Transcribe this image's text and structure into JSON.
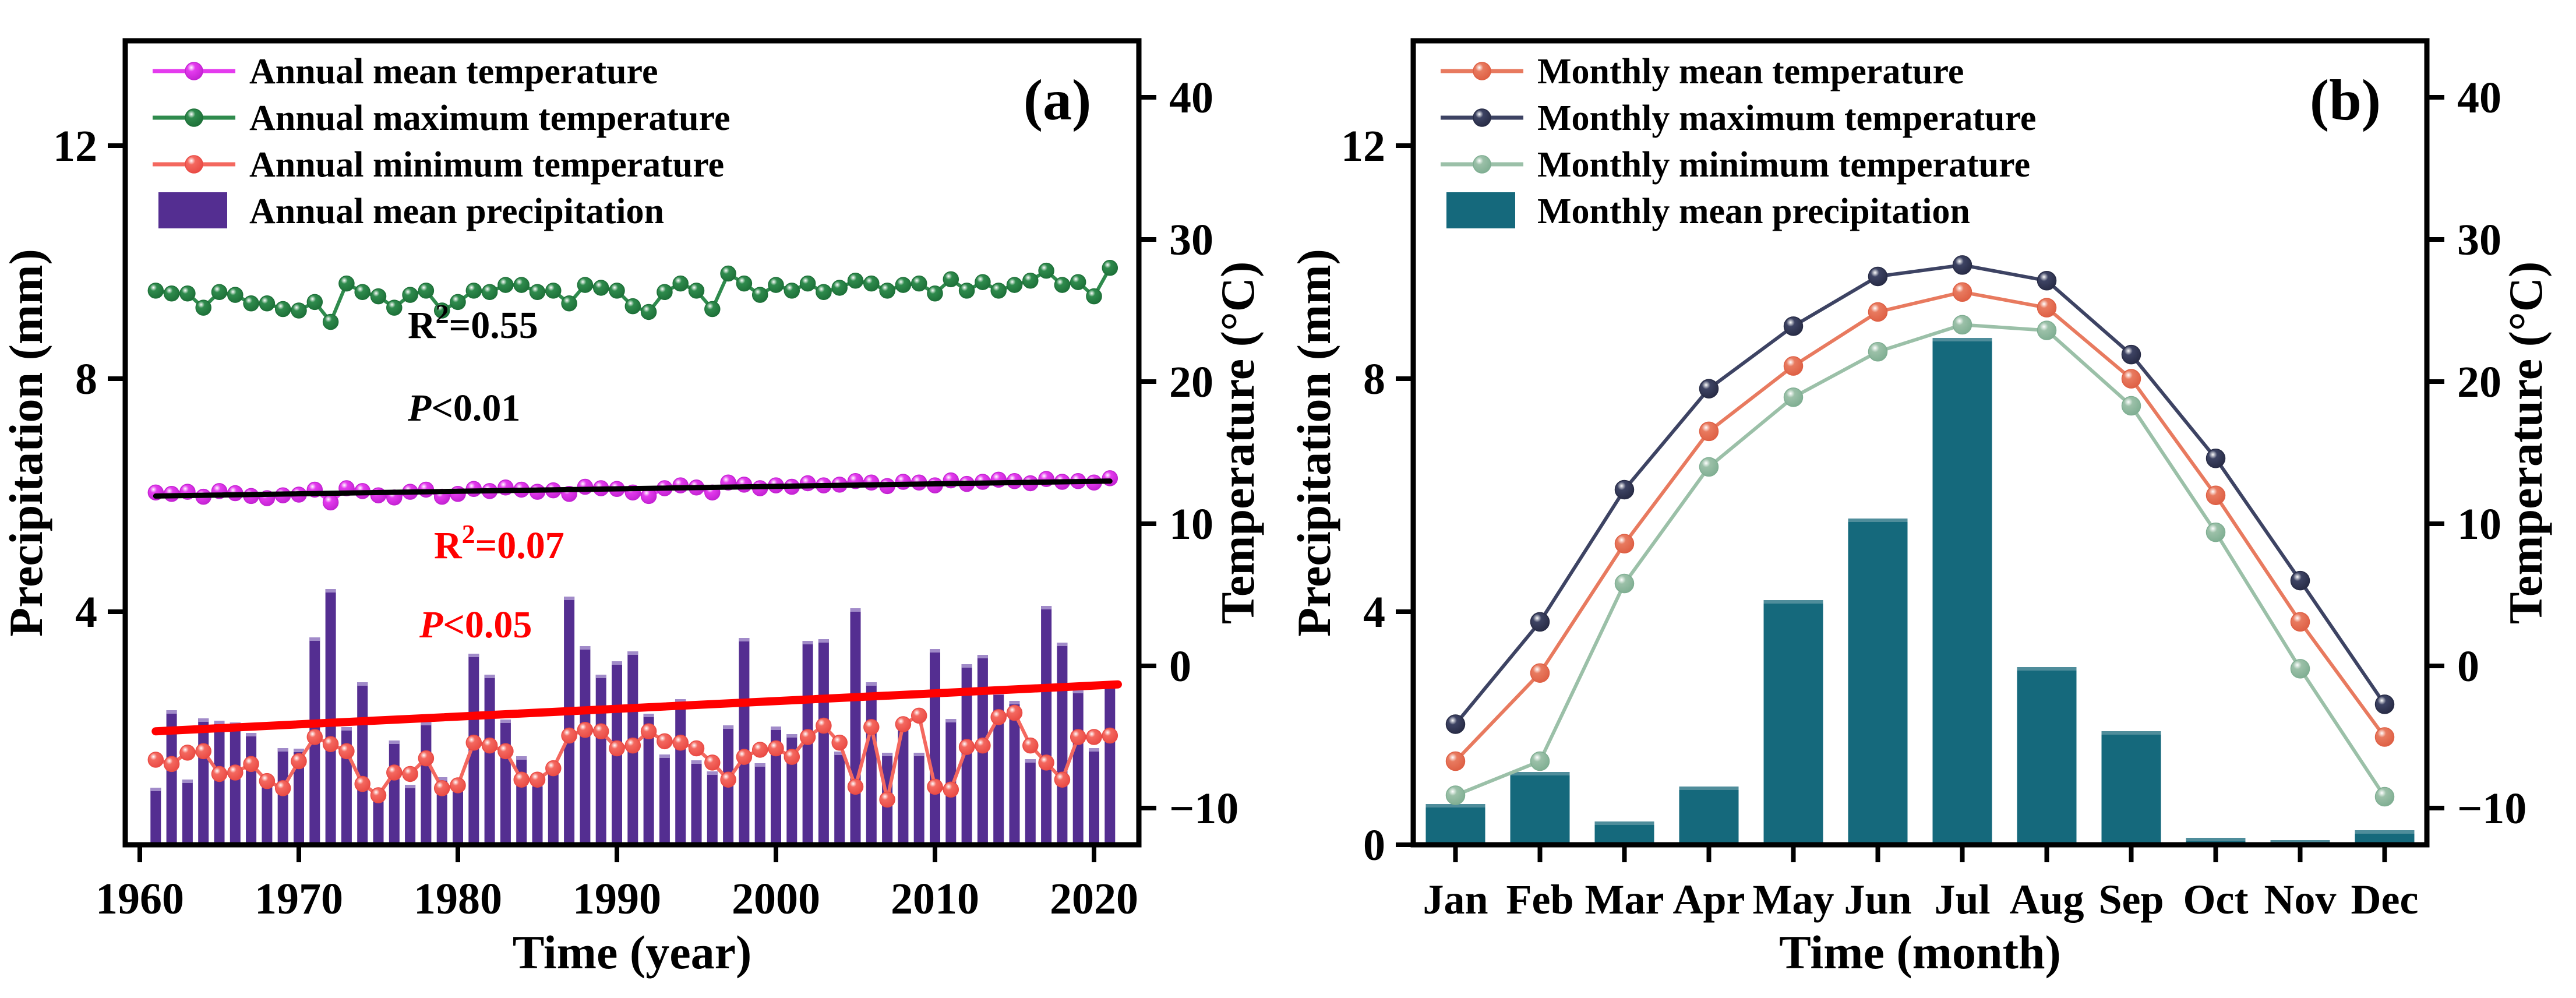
{
  "figure": {
    "background": "#FFFFFF",
    "axis_color": "#000000"
  },
  "chart_data": [
    {
      "panel_label": "(a)",
      "type": "bar+line",
      "xlabel": "Time (year)",
      "ylabel_left": "Precipitation (mm)",
      "ylabel_right": "Temperature (°C)",
      "x_tick_labels": [
        "1960",
        "1970",
        "1980",
        "1990",
        "2000",
        "2010",
        "2020"
      ],
      "y_left_ticks": [
        4,
        8,
        12
      ],
      "y_right_ticks": [
        -10,
        0,
        10,
        20,
        30,
        40
      ],
      "y_left_range": [
        0,
        13.8
      ],
      "y_right_range": [
        -12.6,
        43.0
      ],
      "x_range": [
        1959,
        2024
      ],
      "year_start": 1961,
      "year_end": 2021,
      "legend_position": "top-left",
      "grid": false,
      "series": [
        {
          "name": "Annual mean temperature",
          "kind": "line",
          "axis": "right",
          "color": "#E43BEE",
          "marker_core": "#C322D2",
          "values": [
            12.2,
            12.1,
            12.25,
            11.9,
            12.3,
            12.15,
            11.95,
            11.8,
            12.0,
            12.05,
            12.4,
            11.5,
            12.5,
            12.3,
            12.0,
            11.85,
            12.25,
            12.4,
            11.9,
            12.1,
            12.45,
            12.3,
            12.55,
            12.4,
            12.25,
            12.35,
            12.1,
            12.6,
            12.5,
            12.45,
            12.2,
            11.95,
            12.5,
            12.7,
            12.55,
            12.2,
            12.9,
            12.75,
            12.5,
            12.7,
            12.6,
            12.85,
            12.7,
            12.75,
            13.0,
            12.9,
            12.65,
            12.95,
            12.9,
            12.7,
            13.05,
            12.8,
            12.95,
            13.1,
            13.0,
            12.85,
            13.15,
            12.95,
            13.0,
            12.9,
            13.2
          ]
        },
        {
          "name": "Annual maximum temperature",
          "kind": "line",
          "axis": "right",
          "color": "#2F8B4D",
          "marker_core": "#1D7038",
          "values": [
            26.4,
            26.2,
            26.2,
            25.2,
            26.3,
            26.1,
            25.5,
            25.5,
            25.1,
            25.0,
            25.6,
            24.2,
            26.9,
            26.3,
            26.0,
            25.2,
            26.1,
            26.4,
            25.0,
            25.6,
            26.4,
            26.3,
            26.8,
            26.8,
            26.3,
            26.4,
            25.5,
            26.8,
            26.6,
            26.4,
            25.3,
            24.9,
            26.3,
            26.9,
            26.4,
            25.1,
            27.6,
            26.9,
            26.1,
            26.8,
            26.4,
            26.9,
            26.3,
            26.6,
            27.1,
            26.9,
            26.4,
            26.8,
            26.9,
            26.2,
            27.2,
            26.4,
            27.0,
            26.4,
            26.8,
            27.1,
            27.8,
            26.8,
            27.0,
            26.0,
            28.0
          ]
        },
        {
          "name": "Annual  minimum temperature",
          "kind": "line",
          "axis": "right",
          "color": "#F4685F",
          "marker_core": "#E94A44",
          "values": [
            -6.6,
            -6.9,
            -6.1,
            -6.0,
            -7.6,
            -7.5,
            -6.9,
            -8.1,
            -8.6,
            -6.7,
            -5.0,
            -5.5,
            -6.0,
            -8.3,
            -9.1,
            -7.5,
            -7.6,
            -6.5,
            -8.6,
            -8.4,
            -5.4,
            -5.6,
            -6.0,
            -8.0,
            -8.0,
            -7.2,
            -4.9,
            -4.5,
            -4.6,
            -5.8,
            -5.6,
            -4.6,
            -5.3,
            -5.4,
            -5.8,
            -6.8,
            -8.0,
            -6.4,
            -5.9,
            -5.8,
            -6.4,
            -5.0,
            -4.2,
            -5.4,
            -8.5,
            -4.3,
            -9.4,
            -4.1,
            -3.5,
            -8.5,
            -8.7,
            -5.7,
            -5.6,
            -3.6,
            -3.3,
            -5.6,
            -6.8,
            -8.0,
            -5.0,
            -5.0,
            -4.9
          ]
        },
        {
          "name": "Annual mean precipitation",
          "kind": "bar",
          "axis": "left",
          "color": "#542E91",
          "cap_color": "#A18BC9",
          "values": [
            0.98,
            2.31,
            1.12,
            2.17,
            2.13,
            2.1,
            1.92,
            1.08,
            1.66,
            1.65,
            3.56,
            4.39,
            2.02,
            2.79,
            0.89,
            1.79,
            1.03,
            2.11,
            1.16,
            1.11,
            3.28,
            2.92,
            2.15,
            1.52,
            1.06,
            1.32,
            4.26,
            3.41,
            2.92,
            3.15,
            3.32,
            2.25,
            1.55,
            2.5,
            1.45,
            1.26,
            2.05,
            3.55,
            1.4,
            2.03,
            1.9,
            3.5,
            3.53,
            1.6,
            4.06,
            2.79,
            1.58,
            2.15,
            1.58,
            3.36,
            2.16,
            3.1,
            3.26,
            2.63,
            2.47,
            1.47,
            4.1,
            3.47,
            2.66,
            1.66,
            2.76
          ]
        }
      ],
      "trend_lines": [
        {
          "name": "mean-temperature-trend",
          "color": "#000000",
          "x1": 1961,
          "v1": 11.95,
          "x2": 2021,
          "v2": 13.0,
          "width": 9
        },
        {
          "name": "minimum-temperature-trend",
          "color": "#FF0000",
          "x1": 1961,
          "v1": -4.6,
          "x2": 2021.5,
          "v2": -1.3,
          "width": 14
        }
      ],
      "annotations": [
        {
          "head": "R",
          "sup": "2",
          "tail": "=0.55",
          "italic_head": false,
          "color": "#000000",
          "x": 700,
          "y": 580
        },
        {
          "head": "P",
          "sup": "",
          "tail": "<0.01",
          "italic_head": true,
          "color": "#000000",
          "x": 700,
          "y": 722
        },
        {
          "head": "R",
          "sup": "2",
          "tail": "=0.07",
          "italic_head": false,
          "color": "#FF0000",
          "x": 745,
          "y": 958
        },
        {
          "head": "P",
          "sup": "",
          "tail": "<0.05",
          "italic_head": true,
          "color": "#FF0000",
          "x": 720,
          "y": 1094
        }
      ]
    },
    {
      "panel_label": "(b)",
      "type": "bar+line",
      "xlabel": "Time (month)",
      "ylabel_left": "Precipitation (mm)",
      "ylabel_right": "Temperature (°C)",
      "categories": [
        "Jan",
        "Feb",
        "Mar",
        "Apr",
        "May",
        "Jun",
        "Jul",
        "Aug",
        "Sep",
        "Oct",
        "Nov",
        "Dec"
      ],
      "y_left_ticks": [
        0,
        4,
        8,
        12
      ],
      "y_right_ticks": [
        -10,
        0,
        10,
        20,
        30,
        40
      ],
      "y_left_range": [
        0,
        13.8
      ],
      "y_right_range": [
        -12.6,
        43.0
      ],
      "legend_position": "top-left",
      "grid": false,
      "series": [
        {
          "name": "Monthly mean temperature",
          "kind": "line",
          "axis": "right",
          "color": "#E87A5F",
          "marker_core": "#DE5F44",
          "values": [
            -6.7,
            -0.5,
            8.6,
            16.5,
            21.1,
            24.9,
            26.3,
            25.2,
            20.2,
            12.0,
            3.1,
            -5.0
          ]
        },
        {
          "name": "Monthly maximum temperature",
          "kind": "line",
          "axis": "right",
          "color": "#3D4363",
          "marker_core": "#272B45",
          "values": [
            -4.1,
            3.1,
            12.4,
            19.5,
            23.9,
            27.4,
            28.2,
            27.1,
            21.9,
            14.6,
            6.0,
            -2.7
          ]
        },
        {
          "name": "Monthly minimum temperature",
          "kind": "line",
          "axis": "right",
          "color": "#9BC0A8",
          "marker_core": "#7FAE92",
          "values": [
            -9.1,
            -6.7,
            5.8,
            14.0,
            18.9,
            22.1,
            24.0,
            23.6,
            18.3,
            9.4,
            -0.2,
            -9.2
          ]
        },
        {
          "name": "Monthly mean precipitation",
          "kind": "bar",
          "axis": "left",
          "color": "#15697C",
          "cap_color": "#4F8D9B",
          "values": [
            0.7,
            1.25,
            0.4,
            1.0,
            4.2,
            5.6,
            8.7,
            3.05,
            1.95,
            0.12,
            0.08,
            0.25
          ]
        }
      ],
      "trend_lines": [],
      "annotations": []
    }
  ]
}
